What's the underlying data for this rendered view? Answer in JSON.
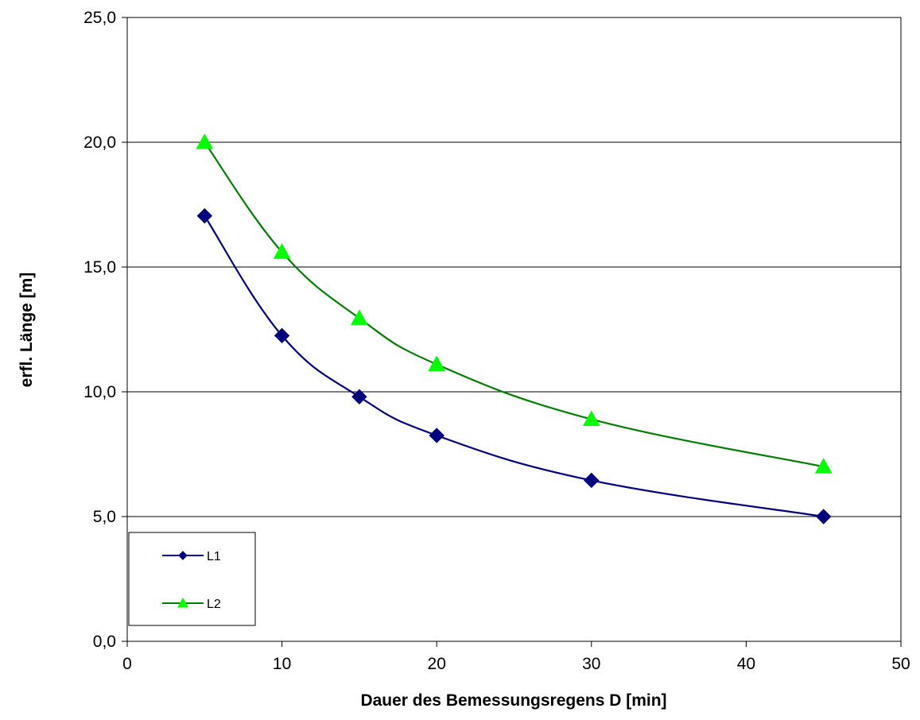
{
  "chart_data": {
    "type": "line",
    "title": "",
    "xlabel": "Dauer des Bemessungsregens D [min]",
    "ylabel": "erfl. Länge [m]",
    "xlim": [
      0,
      50
    ],
    "ylim": [
      0,
      25
    ],
    "x_ticks": [
      "0",
      "10",
      "20",
      "30",
      "40",
      "50"
    ],
    "y_ticks": [
      "0,0",
      "5,0",
      "10,0",
      "15,0",
      "20,0",
      "25,0"
    ],
    "x_tick_values": [
      0,
      10,
      20,
      30,
      40,
      50
    ],
    "y_tick_values": [
      0,
      5,
      10,
      15,
      20,
      25
    ],
    "grid": "horizontal",
    "legend_position": "bottom-left",
    "x": [
      5,
      10,
      15,
      20,
      30,
      45
    ],
    "series": [
      {
        "name": "L1",
        "values": [
          17.05,
          12.25,
          9.8,
          8.25,
          6.45,
          5.0
        ],
        "line_color": "#000080",
        "marker_color": "#000080",
        "marker": "diamond"
      },
      {
        "name": "L2",
        "values": [
          20.0,
          15.6,
          12.95,
          11.1,
          8.9,
          7.0
        ],
        "line_color": "#008000",
        "marker_color": "#00ff00",
        "marker": "triangle"
      }
    ]
  }
}
